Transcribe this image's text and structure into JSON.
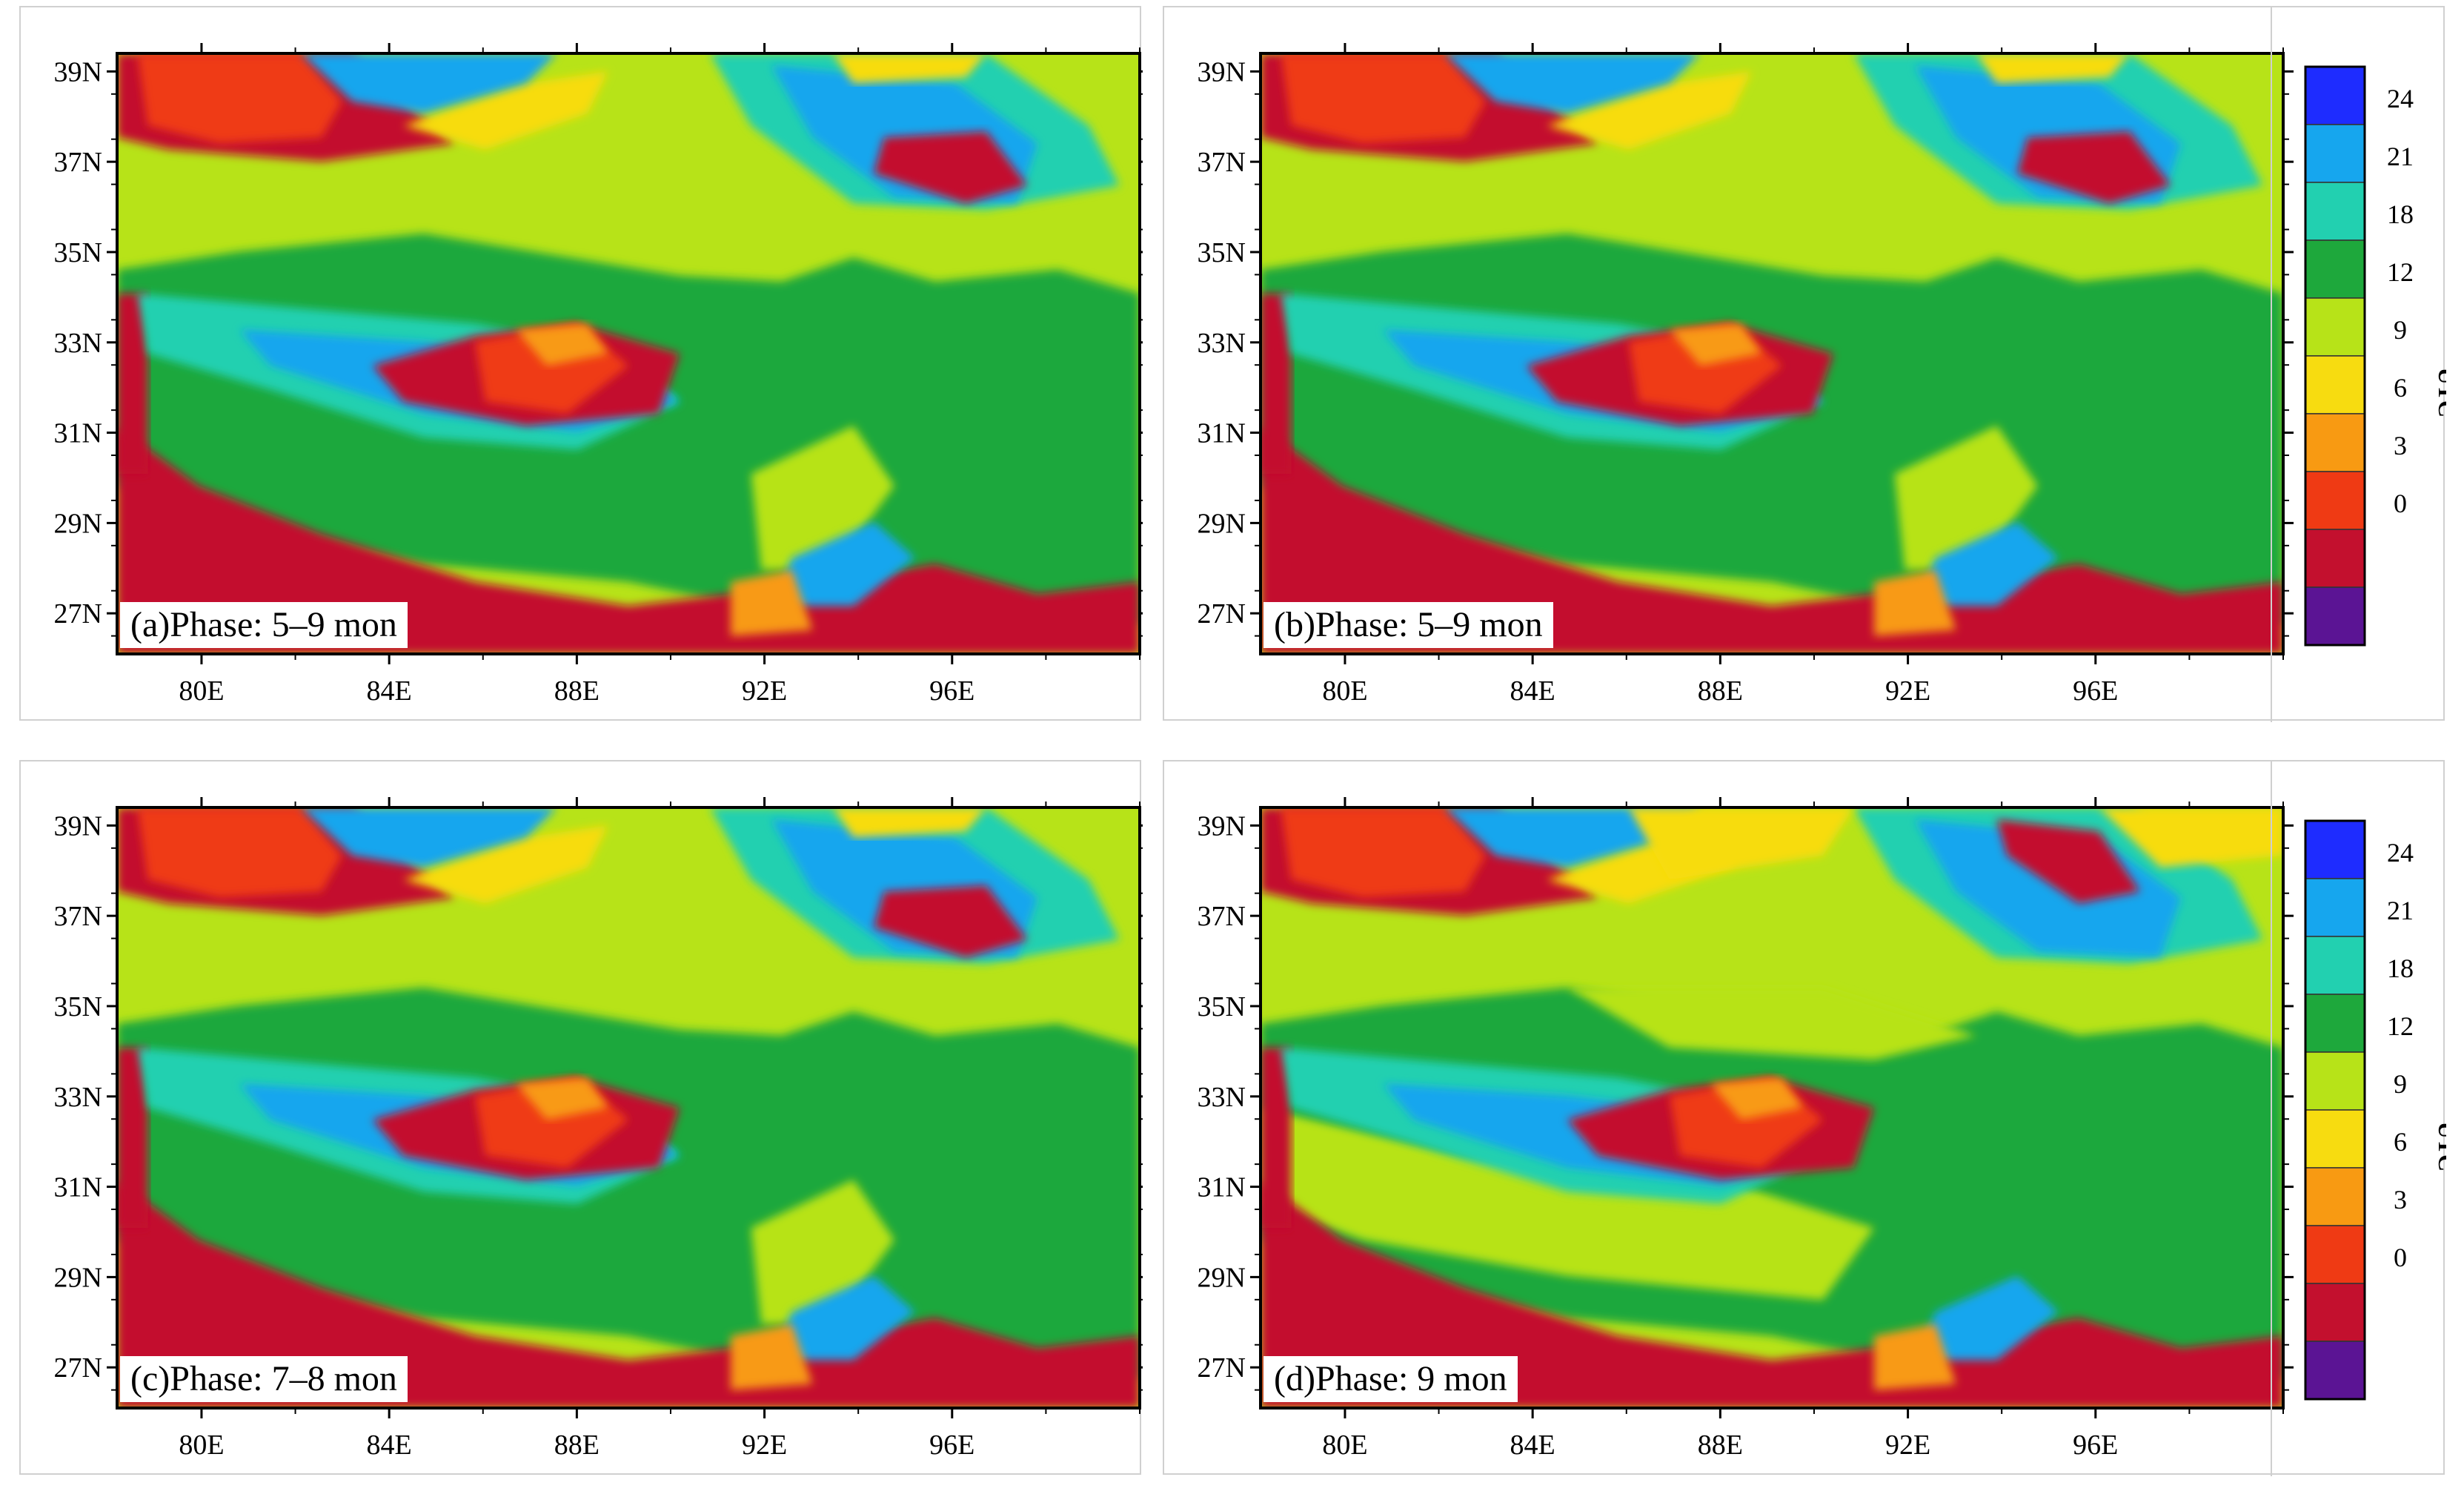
{
  "colorbar": {
    "title": "UTC",
    "labels": [
      "24",
      "21",
      "18",
      "12",
      "9",
      "6",
      "3",
      "0"
    ],
    "colors": [
      "#1e2cff",
      "#16a6ee",
      "#22d0b0",
      "#1ea83c",
      "#b7e318",
      "#f7dc10",
      "#f89a12",
      "#ef3a14",
      "#c3102e",
      "#5b1494"
    ]
  },
  "palette": {
    "darkred": "#c3102e",
    "red": "#ef3a14",
    "orange": "#f89a12",
    "yellow": "#f7dc10",
    "lime": "#b7e318",
    "green": "#1ea83c",
    "teal": "#22d0b0",
    "blue": "#16a6ee"
  },
  "axes": {
    "lat_ticks": [
      "39N",
      "37N",
      "35N",
      "33N",
      "31N",
      "29N",
      "27N"
    ],
    "lon_ticks": [
      "80E",
      "84E",
      "88E",
      "92E",
      "96E"
    ]
  },
  "panels": [
    {
      "label": "(a)Phase: 5–9 mon"
    },
    {
      "label": "(b)Phase: 5–9 mon"
    },
    {
      "label": "(c)Phase: 7–8 mon"
    },
    {
      "label": "(d)Phase: 9 mon"
    }
  ]
}
